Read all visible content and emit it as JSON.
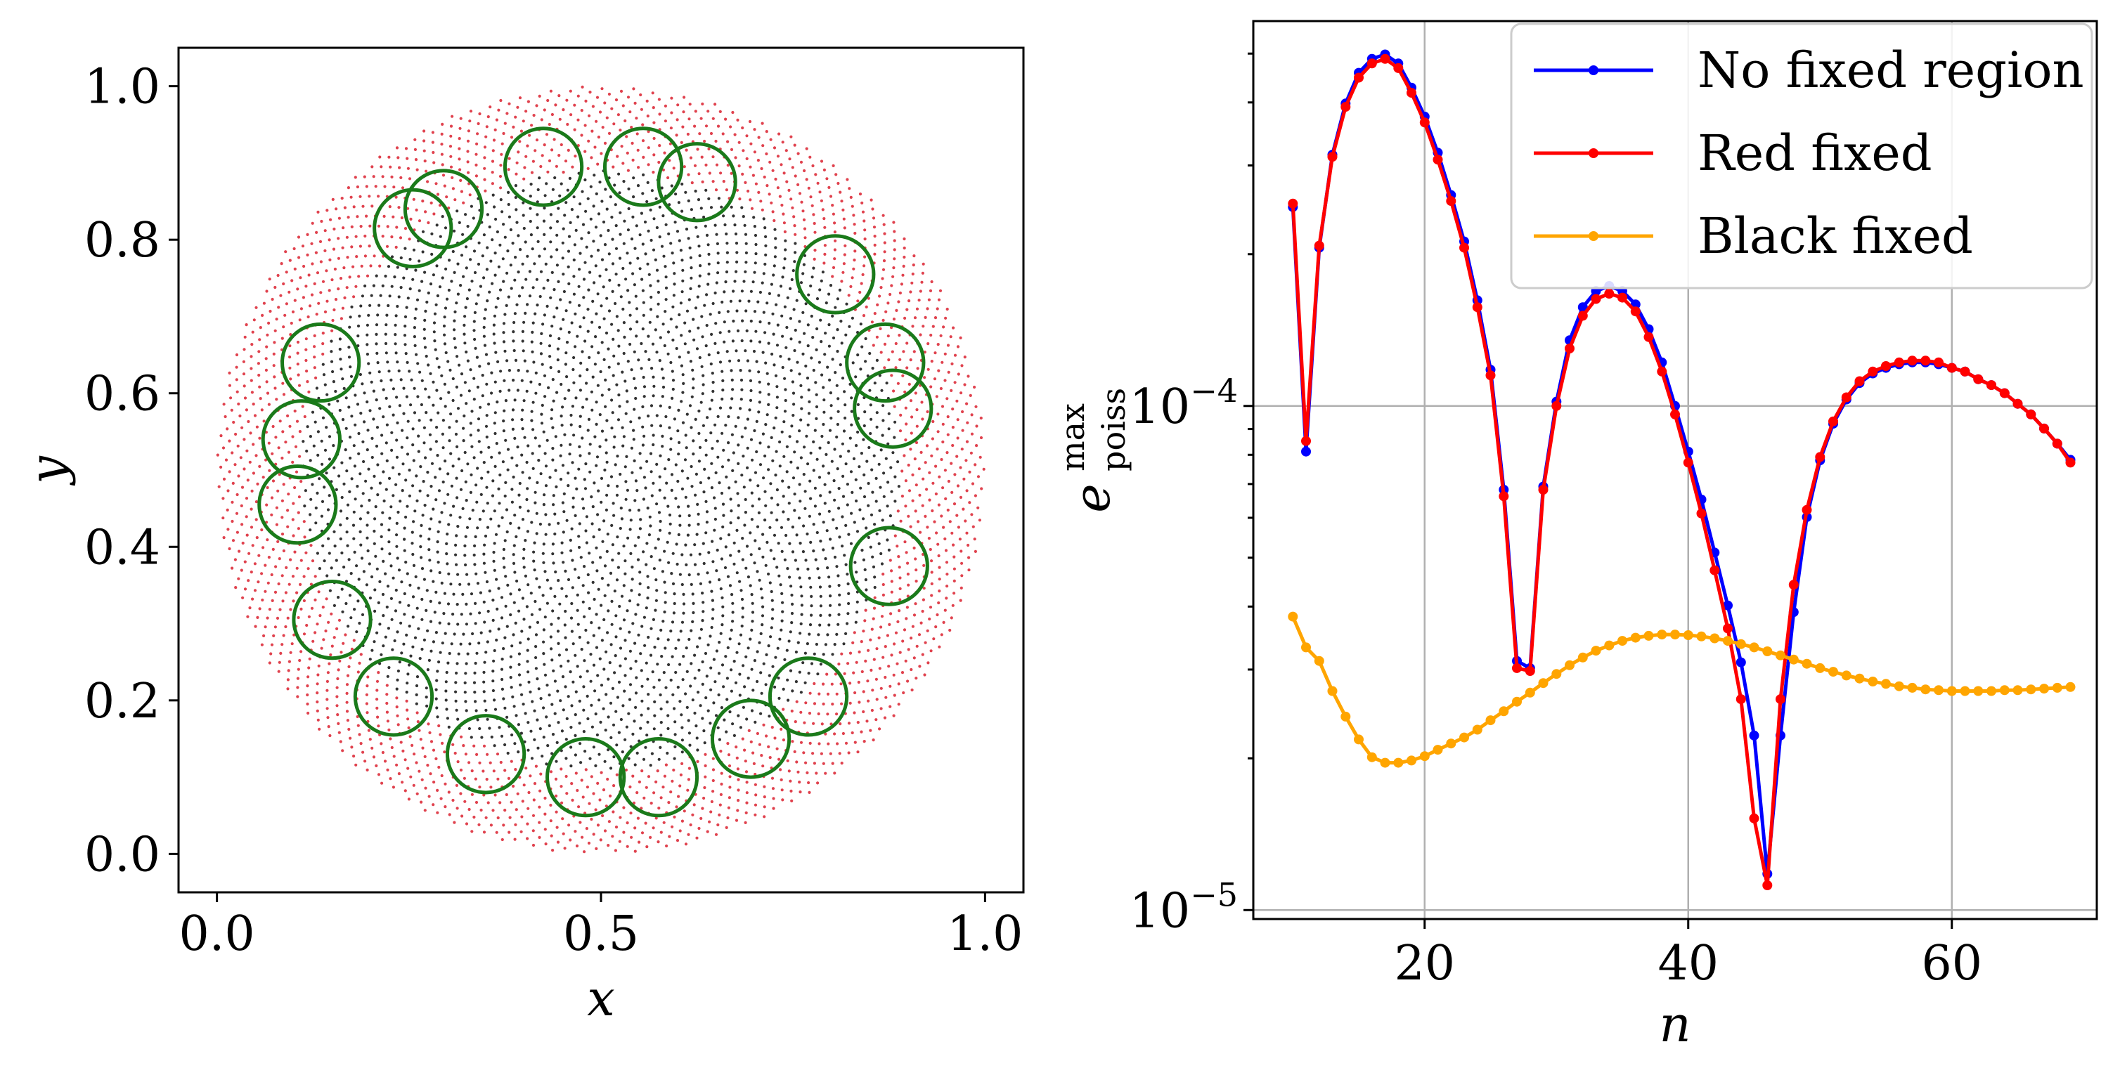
{
  "chart_data": [
    {
      "type": "scatter",
      "title": "",
      "xlabel": "x",
      "ylabel": "y",
      "xlim": [
        -0.05,
        1.05
      ],
      "ylim": [
        -0.05,
        1.05
      ],
      "xticks": [
        0.0,
        0.5,
        1.0
      ],
      "xtick_labels": [
        "0.0",
        "0.5",
        "1.0"
      ],
      "yticks": [
        0.0,
        0.2,
        0.4,
        0.6,
        0.8,
        1.0
      ],
      "ytick_labels": [
        "0.0",
        "0.2",
        "0.4",
        "0.6",
        "0.8",
        "1.0"
      ],
      "disk": {
        "center": [
          0.5,
          0.5
        ],
        "radius": 0.5,
        "inner_radius": 0.39
      },
      "colors": {
        "boundary_points": "#e0424e",
        "interior_points": "#333333",
        "circles": "#1a7a1a"
      },
      "circle_radius": 0.05,
      "circles": [
        {
          "x": 0.425,
          "y": 0.895
        },
        {
          "x": 0.555,
          "y": 0.895
        },
        {
          "x": 0.625,
          "y": 0.875
        },
        {
          "x": 0.295,
          "y": 0.84
        },
        {
          "x": 0.255,
          "y": 0.815
        },
        {
          "x": 0.805,
          "y": 0.755
        },
        {
          "x": 0.135,
          "y": 0.64
        },
        {
          "x": 0.87,
          "y": 0.64
        },
        {
          "x": 0.88,
          "y": 0.58
        },
        {
          "x": 0.11,
          "y": 0.54
        },
        {
          "x": 0.105,
          "y": 0.455
        },
        {
          "x": 0.875,
          "y": 0.375
        },
        {
          "x": 0.15,
          "y": 0.305
        },
        {
          "x": 0.23,
          "y": 0.205
        },
        {
          "x": 0.77,
          "y": 0.205
        },
        {
          "x": 0.695,
          "y": 0.15
        },
        {
          "x": 0.35,
          "y": 0.13
        },
        {
          "x": 0.48,
          "y": 0.1
        },
        {
          "x": 0.575,
          "y": 0.1
        }
      ]
    },
    {
      "type": "line",
      "title": "",
      "xlabel": "n",
      "ylabel_main": "e",
      "ylabel_sup": "max",
      "ylabel_sub": "poiss",
      "yscale": "log",
      "xlim": [
        7,
        71
      ],
      "ylim": [
        9.6e-06,
        0.00058
      ],
      "xticks": [
        20,
        40,
        60
      ],
      "xtick_labels": [
        "20",
        "40",
        "60"
      ],
      "yticks": [
        1e-05,
        0.0001
      ],
      "ytick_bases": [
        "10",
        "10"
      ],
      "ytick_exponents": [
        "−5",
        "−4"
      ],
      "legend_position": "top-right",
      "grid": true,
      "series": [
        {
          "name": "No fixed region",
          "color": "#0000ff",
          "x": [
            10,
            11,
            12,
            13,
            14,
            15,
            16,
            17,
            18,
            19,
            20,
            21,
            22,
            23,
            24,
            25,
            26,
            27,
            28,
            29,
            30,
            31,
            32,
            33,
            34,
            35,
            36,
            37,
            38,
            39,
            40,
            41,
            42,
            43,
            44,
            45,
            46,
            47,
            48,
            49,
            50,
            51,
            52,
            53,
            54,
            55,
            56,
            57,
            58,
            59,
            60,
            61,
            62,
            63,
            64,
            65,
            66,
            67,
            68,
            69
          ],
          "values": [
            0.000248,
            8.12e-05,
            0.000206,
            0.000315,
            0.000398,
            0.000458,
            0.000488,
            0.000498,
            0.000478,
            0.000428,
            0.000375,
            0.000318,
            0.000262,
            0.000212,
            0.000162,
            0.000118,
            6.82e-05,
            3.12e-05,
            3.02e-05,
            6.92e-05,
            0.000102,
            0.000135,
            0.000157,
            0.000169,
            0.000173,
            0.000169,
            0.000159,
            0.000142,
            0.000122,
            0.0001,
            8.12e-05,
            6.52e-05,
            5.12e-05,
            4.02e-05,
            3.1e-05,
            2.22e-05,
            1.18e-05,
            2.22e-05,
            3.9e-05,
            6.02e-05,
            7.8e-05,
            9.22e-05,
            0.000103,
            0.000111,
            0.000116,
            0.000119,
            0.000121,
            0.000122,
            0.000122,
            0.000121,
            0.000119,
            0.000117,
            0.000113,
            0.00011,
            0.000106,
            0.000101,
            9.62e-05,
            9.02e-05,
            8.42e-05,
            7.82e-05
          ]
        },
        {
          "name": "Red fixed",
          "color": "#ff0000",
          "x": [
            10,
            11,
            12,
            13,
            14,
            15,
            16,
            17,
            18,
            19,
            20,
            21,
            22,
            23,
            24,
            25,
            26,
            27,
            28,
            29,
            30,
            31,
            32,
            33,
            34,
            35,
            36,
            37,
            38,
            39,
            40,
            41,
            42,
            43,
            44,
            45,
            46,
            47,
            48,
            49,
            50,
            51,
            52,
            53,
            54,
            55,
            56,
            57,
            58,
            59,
            60,
            61,
            62,
            63,
            64,
            65,
            66,
            67,
            68,
            69
          ],
          "values": [
            0.000252,
            8.52e-05,
            0.000208,
            0.000312,
            0.000392,
            0.000448,
            0.000478,
            0.000488,
            0.000468,
            0.000418,
            0.000365,
            0.000308,
            0.000255,
            0.000206,
            0.000157,
            0.000115,
            6.62e-05,
            3.02e-05,
            2.98e-05,
            6.82e-05,
            0.0001,
            0.00013,
            0.000151,
            0.000163,
            0.000167,
            0.000164,
            0.000154,
            0.000137,
            0.000117,
            9.62e-05,
            7.72e-05,
            6.12e-05,
            4.72e-05,
            3.62e-05,
            2.62e-05,
            1.52e-05,
            1.12e-05,
            2.62e-05,
            4.42e-05,
            6.22e-05,
            7.92e-05,
            9.32e-05,
            0.000104,
            0.000112,
            0.000117,
            0.00012,
            0.000122,
            0.000123,
            0.000123,
            0.000122,
            0.000119,
            0.000117,
            0.000113,
            0.00011,
            0.000106,
            0.000101,
            9.62e-05,
            9.02e-05,
            8.42e-05,
            7.72e-05
          ]
        },
        {
          "name": "Black fixed",
          "color": "#ffa500",
          "x": [
            10,
            11,
            12,
            13,
            14,
            15,
            16,
            17,
            18,
            19,
            20,
            21,
            22,
            23,
            24,
            25,
            26,
            27,
            28,
            29,
            30,
            31,
            32,
            33,
            34,
            35,
            36,
            37,
            38,
            39,
            40,
            41,
            42,
            43,
            44,
            45,
            46,
            47,
            48,
            49,
            50,
            51,
            52,
            53,
            54,
            55,
            56,
            57,
            58,
            59,
            60,
            61,
            62,
            63,
            64,
            65,
            66,
            67,
            68,
            69
          ],
          "values": [
            3.82e-05,
            3.32e-05,
            3.12e-05,
            2.72e-05,
            2.42e-05,
            2.18e-05,
            2.01e-05,
            1.96e-05,
            1.96e-05,
            1.98e-05,
            2.02e-05,
            2.08e-05,
            2.14e-05,
            2.2e-05,
            2.28e-05,
            2.38e-05,
            2.48e-05,
            2.59e-05,
            2.7e-05,
            2.82e-05,
            2.94e-05,
            3.06e-05,
            3.17e-05,
            3.27e-05,
            3.35e-05,
            3.42e-05,
            3.47e-05,
            3.5e-05,
            3.52e-05,
            3.52e-05,
            3.51e-05,
            3.49e-05,
            3.46e-05,
            3.42e-05,
            3.37e-05,
            3.32e-05,
            3.26e-05,
            3.2e-05,
            3.14e-05,
            3.08e-05,
            3.02e-05,
            2.97e-05,
            2.92e-05,
            2.88e-05,
            2.84e-05,
            2.81e-05,
            2.78e-05,
            2.76e-05,
            2.74e-05,
            2.73e-05,
            2.72e-05,
            2.72e-05,
            2.72e-05,
            2.72e-05,
            2.73e-05,
            2.73e-05,
            2.74e-05,
            2.75e-05,
            2.76e-05,
            2.77e-05
          ]
        }
      ]
    }
  ]
}
